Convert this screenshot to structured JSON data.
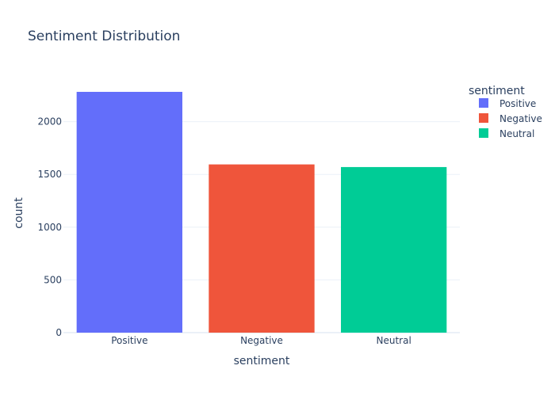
{
  "chart_data": {
    "type": "bar",
    "title": "Sentiment Distribution",
    "xlabel": "sentiment",
    "ylabel": "count",
    "categories": [
      "Positive",
      "Negative",
      "Neutral"
    ],
    "values": [
      2283,
      1595,
      1570
    ],
    "colors": [
      "#636efa",
      "#ef553b",
      "#00cc96"
    ],
    "yticks": [
      0,
      500,
      1000,
      1500,
      2000
    ],
    "ylim": [
      0,
      2403
    ],
    "grid": true,
    "legend": {
      "title": "sentiment",
      "position": "right",
      "items": [
        {
          "label": "Positive",
          "color": "#636efa"
        },
        {
          "label": "Negative",
          "color": "#ef553b"
        },
        {
          "label": "Neutral",
          "color": "#00cc96"
        }
      ]
    }
  }
}
